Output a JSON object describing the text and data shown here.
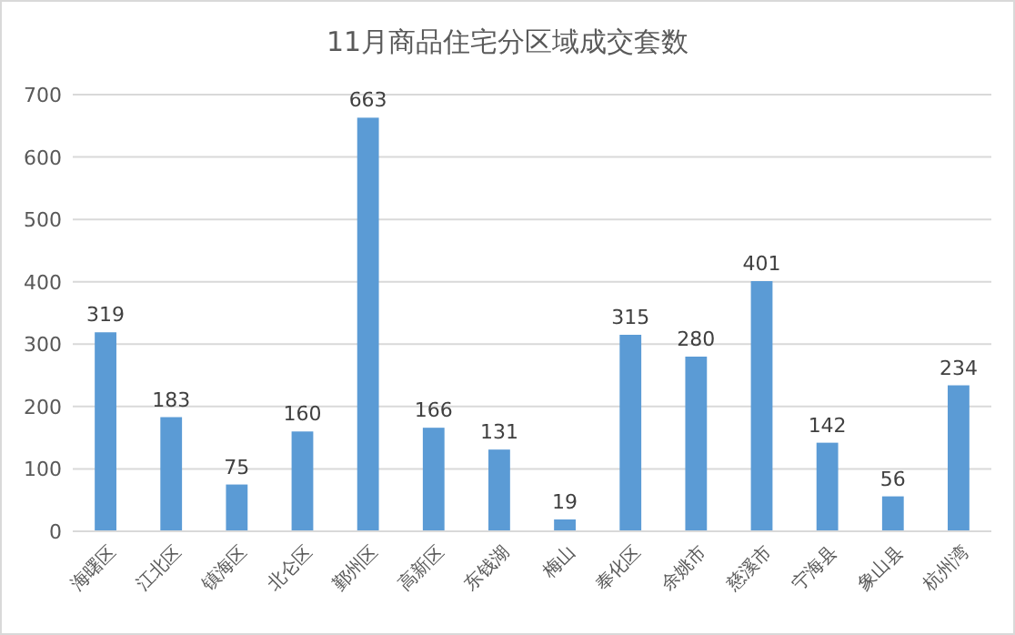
{
  "chart_data": {
    "type": "bar",
    "title": "11月商品住宅分区域成交套数",
    "categories": [
      "海曙区",
      "江北区",
      "镇海区",
      "北仑区",
      "鄞州区",
      "高新区",
      "东钱湖",
      "梅山",
      "奉化区",
      "余姚市",
      "慈溪市",
      "宁海县",
      "象山县",
      "杭州湾"
    ],
    "values": [
      319,
      183,
      75,
      160,
      663,
      166,
      131,
      19,
      315,
      280,
      401,
      142,
      56,
      234
    ],
    "color": "#5b9bd5",
    "ylim": [
      0,
      700
    ],
    "yticks": [
      0,
      100,
      200,
      300,
      400,
      500,
      600,
      700
    ],
    "grid": "y",
    "data_labels": true
  }
}
